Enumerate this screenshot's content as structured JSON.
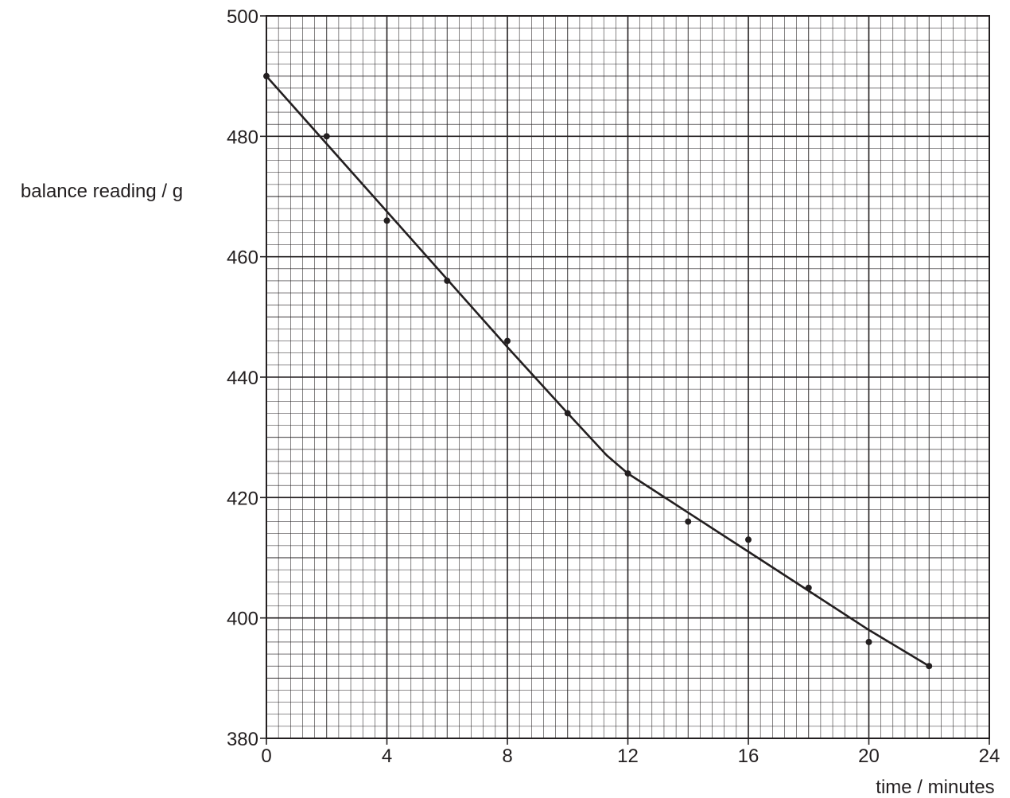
{
  "chart_data": {
    "type": "scatter",
    "title": "",
    "xlabel": "time / minutes",
    "ylabel": "balance reading / g",
    "xlim": [
      0,
      24
    ],
    "ylim": [
      380,
      500
    ],
    "x_ticks": [
      0,
      4,
      8,
      12,
      16,
      20,
      24
    ],
    "y_ticks": [
      380,
      400,
      420,
      440,
      460,
      480,
      500
    ],
    "grid": true,
    "grid_minor_x_step": 0.4,
    "grid_minor_y_step": 2,
    "points": [
      {
        "x": 0,
        "y": 490
      },
      {
        "x": 2,
        "y": 480
      },
      {
        "x": 4,
        "y": 466
      },
      {
        "x": 6,
        "y": 456
      },
      {
        "x": 8,
        "y": 446
      },
      {
        "x": 10,
        "y": 434
      },
      {
        "x": 12,
        "y": 424
      },
      {
        "x": 14,
        "y": 416
      },
      {
        "x": 16,
        "y": 413
      },
      {
        "x": 18,
        "y": 405
      },
      {
        "x": 20,
        "y": 396
      },
      {
        "x": 22,
        "y": 392
      }
    ],
    "best_fit_line": [
      {
        "x": 0,
        "y": 490
      },
      {
        "x": 4,
        "y": 467.5
      },
      {
        "x": 8,
        "y": 445
      },
      {
        "x": 10,
        "y": 434
      },
      {
        "x": 11.3,
        "y": 427
      },
      {
        "x": 12,
        "y": 424
      },
      {
        "x": 14,
        "y": 417.5
      },
      {
        "x": 16,
        "y": 411
      },
      {
        "x": 18,
        "y": 404.5
      },
      {
        "x": 20,
        "y": 398
      },
      {
        "x": 22,
        "y": 392
      }
    ],
    "colors": {
      "ink": "#231f20",
      "grid": "#231f20"
    }
  }
}
